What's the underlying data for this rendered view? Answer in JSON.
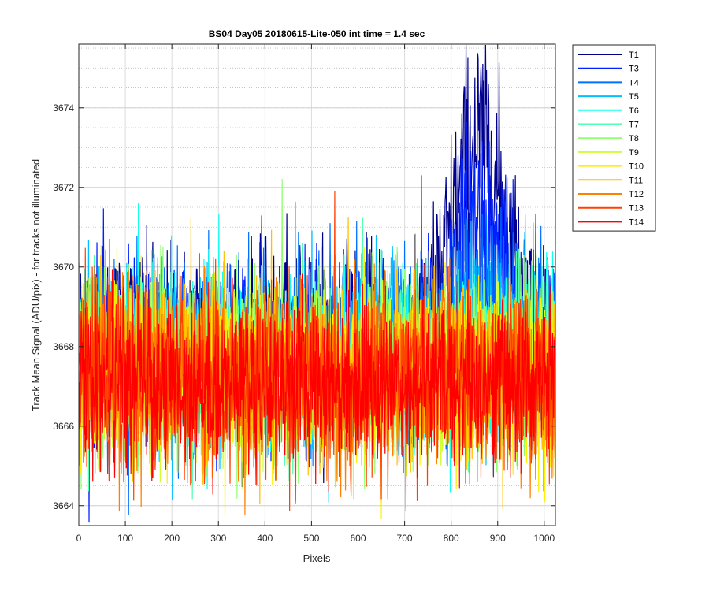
{
  "chart_data": {
    "type": "line",
    "title": "BS04 Day05 20180615-Lite-050 int time = 1.4 sec",
    "xlabel": "Pixels",
    "ylabel": "Track Mean Signal (ADU/pix) - for tracks not illuminated",
    "xlim": [
      0,
      1024
    ],
    "ylim": [
      3663.5,
      3675.6
    ],
    "x_ticks": [
      "0",
      "100",
      "200",
      "300",
      "400",
      "500",
      "600",
      "700",
      "800",
      "900",
      "1000"
    ],
    "y_ticks": [
      "3664",
      "3666",
      "3668",
      "3670",
      "3672",
      "3674"
    ],
    "grid": true,
    "minor_grid_y": true,
    "legend_position": "outside-right-top",
    "points_per_series": 1024,
    "series": [
      {
        "name": "T1",
        "color": "#00008f",
        "baseline": 3668.3,
        "noise": 1.1,
        "peak": 4.8,
        "peak_center": 860,
        "peak_width": 75
      },
      {
        "name": "T3",
        "color": "#0020ff",
        "baseline": 3668.0,
        "noise": 1.1,
        "peak": 3.2,
        "peak_center": 860,
        "peak_width": 70
      },
      {
        "name": "T4",
        "color": "#0070ff",
        "baseline": 3667.9,
        "noise": 1.1,
        "peak": 1.6,
        "peak_center": 860,
        "peak_width": 70
      },
      {
        "name": "T5",
        "color": "#00c0ff",
        "baseline": 3667.8,
        "noise": 1.1,
        "peak": 0.4,
        "peak_center": 860,
        "peak_width": 70
      },
      {
        "name": "T6",
        "color": "#10ffef",
        "baseline": 3667.7,
        "noise": 1.1,
        "peak": 0,
        "peak_center": 860,
        "peak_width": 70
      },
      {
        "name": "T7",
        "color": "#50ffaf",
        "baseline": 3667.6,
        "noise": 1.1,
        "peak": 0,
        "peak_center": 860,
        "peak_width": 70
      },
      {
        "name": "T8",
        "color": "#90ff6f",
        "baseline": 3667.5,
        "noise": 1.1,
        "peak": 0,
        "peak_center": 860,
        "peak_width": 70
      },
      {
        "name": "T9",
        "color": "#cfff30",
        "baseline": 3667.4,
        "noise": 1.1,
        "peak": 0,
        "peak_center": 860,
        "peak_width": 70
      },
      {
        "name": "T10",
        "color": "#ffef00",
        "baseline": 3667.4,
        "noise": 1.1,
        "peak": 0,
        "peak_center": 860,
        "peak_width": 70
      },
      {
        "name": "T11",
        "color": "#ffbf00",
        "baseline": 3667.3,
        "noise": 1.1,
        "peak": 0,
        "peak_center": 860,
        "peak_width": 70
      },
      {
        "name": "T12",
        "color": "#ff8000",
        "baseline": 3667.2,
        "noise": 1.1,
        "peak": 0,
        "peak_center": 860,
        "peak_width": 70
      },
      {
        "name": "T13",
        "color": "#ff4000",
        "baseline": 3667.2,
        "noise": 1.1,
        "peak": 0,
        "peak_center": 860,
        "peak_width": 70
      },
      {
        "name": "T14",
        "color": "#ff0000",
        "baseline": 3667.1,
        "noise": 1.1,
        "peak": 0,
        "peak_center": 860,
        "peak_width": 70
      }
    ]
  }
}
